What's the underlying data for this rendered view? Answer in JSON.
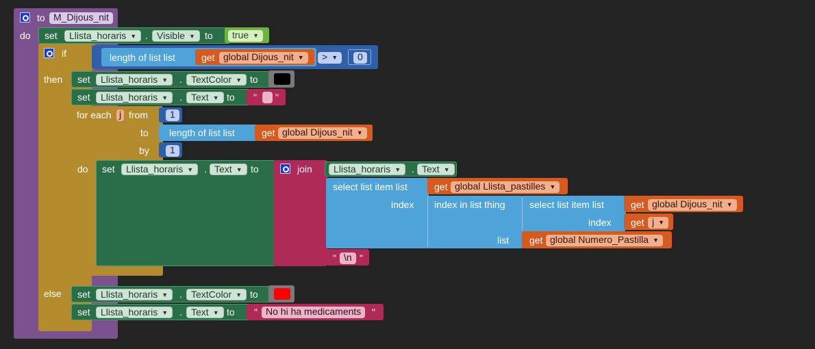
{
  "proc": {
    "to": "to",
    "name": "M_Dijous_nit",
    "do": "do"
  },
  "kw": {
    "set": "set",
    "to": "to",
    "if": "if",
    "then": "then",
    "else": "else",
    "do": "do",
    "for_each": "for each",
    "from": "from",
    "by": "by",
    "join": "join",
    "length_of_list": "length of list  list",
    "get": "get",
    "select_list_item": "select list item  list",
    "index_in_list": "index in list  thing",
    "index": "index",
    "list": "list",
    "dot": ".",
    "quote": "\""
  },
  "blocks": {
    "comp": "Llista_horaris",
    "visible": "Visible",
    "text_color": "TextColor",
    "text": "Text",
    "true_val": "true",
    "var_dijous": "global Dijous_nit",
    "var_pastilles": "global Llista_pastilles",
    "var_numero": "global Numero_Pastilla",
    "op_gt": ">",
    "zero": "0",
    "one": "1",
    "loop_var": "j",
    "newline": "\\n",
    "no_med": "No hi ha medicaments"
  },
  "colors": {
    "procedure": "#7b528f",
    "component": "#2a6e48",
    "control": "#b48b2c",
    "math": "#2f5fa9",
    "list": "#4ea4d8",
    "variable": "#d45a20",
    "text": "#b02a58",
    "logic": "#6fb23f"
  }
}
